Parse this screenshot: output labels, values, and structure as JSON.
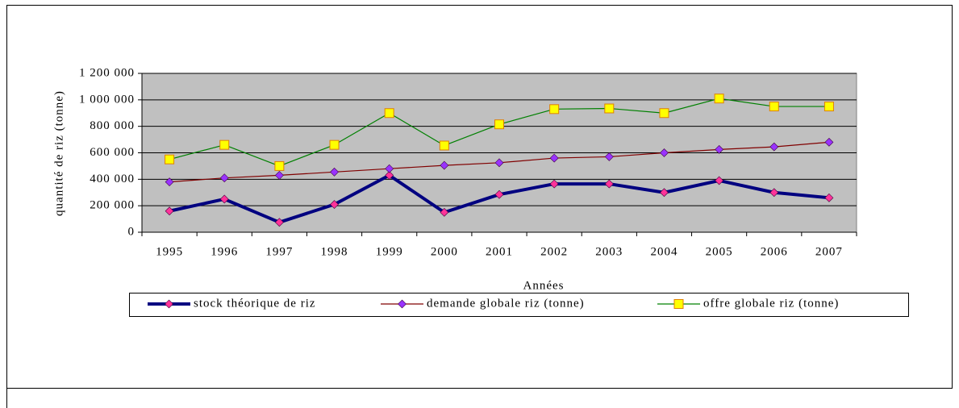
{
  "chart_data": {
    "type": "line",
    "x_label": "Années",
    "y_label": "quantité de riz (tonne)",
    "categories": [
      "1995",
      "1996",
      "1997",
      "1998",
      "1999",
      "2000",
      "2001",
      "2002",
      "2003",
      "2004",
      "2005",
      "2006",
      "2007"
    ],
    "ylim": [
      0,
      1200000
    ],
    "yticks": [
      0,
      {
        "value": 200000,
        "label": "200 000"
      },
      {
        "value": 400000,
        "label": "400 000"
      },
      {
        "value": 600000,
        "label": "600 000"
      },
      {
        "value": 800000,
        "label": "800 000"
      },
      {
        "value": 1000000,
        "label": "1 000 000"
      },
      {
        "value": 1200000,
        "label": "1 200 000"
      }
    ],
    "grid": true,
    "plot_background": "#c0c0c0",
    "legend": "bottom",
    "series": [
      {
        "name": "stock théorique de riz",
        "color": "#000080",
        "line_width": 4,
        "marker": "diamond",
        "marker_color": "#ff3399",
        "values": [
          160000,
          250000,
          75000,
          210000,
          430000,
          150000,
          285000,
          365000,
          365000,
          300000,
          390000,
          300000,
          260000
        ]
      },
      {
        "name": "demande globale riz (tonne)",
        "color": "#800000",
        "line_width": 1.2,
        "marker": "diamond",
        "marker_color": "#9933ff",
        "values": [
          380000,
          410000,
          430000,
          455000,
          480000,
          505000,
          525000,
          560000,
          570000,
          600000,
          625000,
          645000,
          680000
        ]
      },
      {
        "name": "offre globale riz (tonne)",
        "color": "#008000",
        "line_width": 1.2,
        "marker": "square",
        "marker_color": "#ffff00",
        "values": [
          550000,
          660000,
          500000,
          660000,
          900000,
          655000,
          815000,
          930000,
          935000,
          900000,
          1010000,
          950000,
          950000
        ]
      }
    ]
  }
}
